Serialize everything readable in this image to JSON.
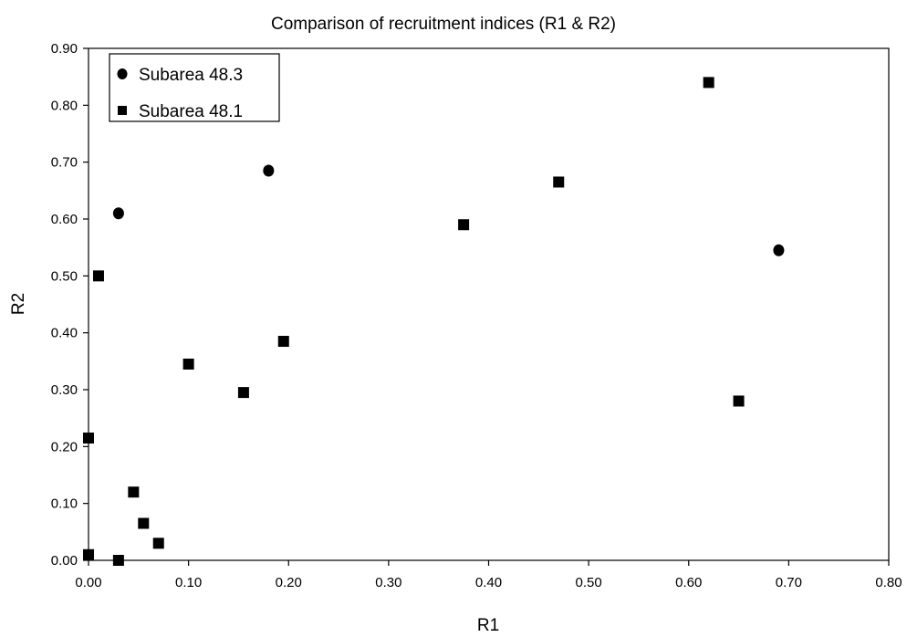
{
  "chart_data": {
    "type": "scatter",
    "title": "Comparison of recruitment indices (R1 & R2)",
    "xlabel": "R1",
    "ylabel": "R2",
    "xlim": [
      0,
      0.8
    ],
    "ylim": [
      0,
      0.9
    ],
    "x_ticks": [
      "0.00",
      "0.10",
      "0.20",
      "0.30",
      "0.40",
      "0.50",
      "0.60",
      "0.70",
      "0.80"
    ],
    "y_ticks": [
      "0.00",
      "0.10",
      "0.20",
      "0.30",
      "0.40",
      "0.50",
      "0.60",
      "0.70",
      "0.80",
      "0.90"
    ],
    "legend_position": "top-left",
    "grid": false,
    "series": [
      {
        "name": "Subarea 48.3",
        "marker": "circle",
        "color": "#000000",
        "points": [
          {
            "x": 0.03,
            "y": 0.61
          },
          {
            "x": 0.18,
            "y": 0.685
          },
          {
            "x": 0.69,
            "y": 0.545
          }
        ]
      },
      {
        "name": "Subarea 48.1",
        "marker": "square",
        "color": "#000000",
        "points": [
          {
            "x": 0.01,
            "y": 0.5
          },
          {
            "x": 0.0,
            "y": 0.215
          },
          {
            "x": 0.0,
            "y": 0.01
          },
          {
            "x": 0.03,
            "y": 0.0
          },
          {
            "x": 0.045,
            "y": 0.12
          },
          {
            "x": 0.055,
            "y": 0.065
          },
          {
            "x": 0.07,
            "y": 0.03
          },
          {
            "x": 0.1,
            "y": 0.345
          },
          {
            "x": 0.155,
            "y": 0.295
          },
          {
            "x": 0.195,
            "y": 0.385
          },
          {
            "x": 0.375,
            "y": 0.59
          },
          {
            "x": 0.47,
            "y": 0.665
          },
          {
            "x": 0.62,
            "y": 0.84
          },
          {
            "x": 0.65,
            "y": 0.28
          }
        ]
      }
    ]
  }
}
